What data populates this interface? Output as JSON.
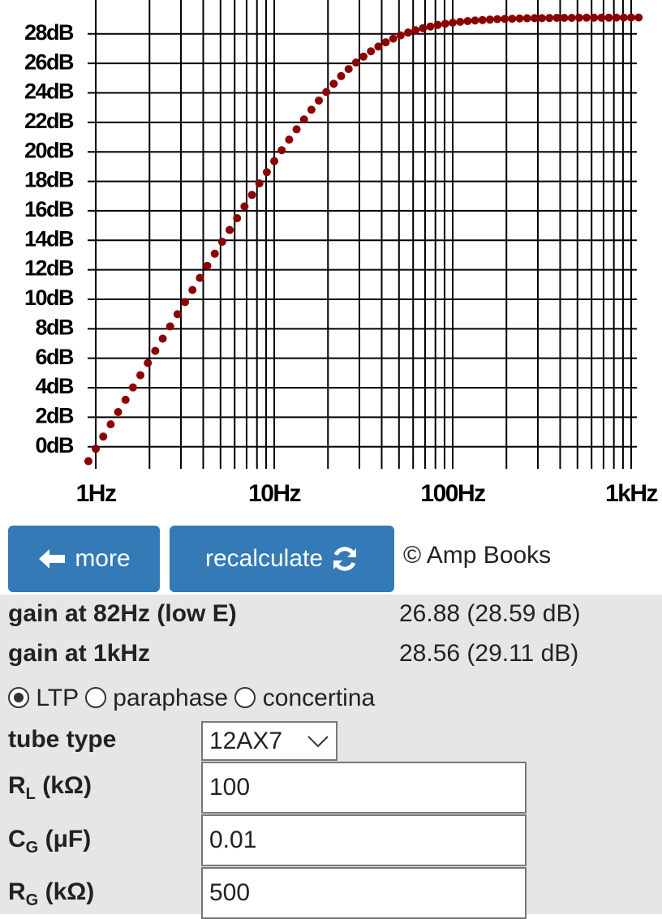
{
  "chart_data": {
    "type": "scatter",
    "x": [
      0.909,
      1,
      1.101,
      1.212,
      1.334,
      1.468,
      1.616,
      1.778,
      1.958,
      2.154,
      2.371,
      2.61,
      2.873,
      3.162,
      3.481,
      3.831,
      4.217,
      4.642,
      5.109,
      5.623,
      6.19,
      6.813,
      7.499,
      8.254,
      9.086,
      10,
      11.01,
      12.12,
      13.34,
      14.68,
      16.16,
      17.78,
      19.58,
      21.54,
      23.71,
      26.1,
      28.73,
      31.62,
      34.81,
      38.31,
      42.17,
      46.42,
      51.09,
      56.23,
      61.9,
      68.13,
      74.99,
      82.54,
      90.86,
      100,
      110.1,
      121.2,
      133.4,
      146.8,
      161.6,
      177.8,
      195.8,
      215.4,
      237.1,
      261,
      287.3,
      316.2,
      348.1,
      383.1,
      421.7,
      464.2,
      510.9,
      562.3,
      619,
      681.3,
      749.9,
      825.4,
      908.6,
      1000,
      1101
    ],
    "values": [
      -0.98,
      -0.14,
      0.69,
      1.52,
      2.35,
      3.18,
      4.02,
      4.85,
      5.68,
      6.5,
      7.33,
      8.16,
      8.99,
      9.81,
      10.63,
      11.45,
      12.27,
      13.09,
      13.9,
      14.7,
      15.5,
      16.3,
      17.08,
      17.86,
      18.62,
      19.37,
      20.11,
      20.83,
      21.53,
      22.2,
      22.86,
      23.48,
      24.06,
      24.62,
      25.14,
      25.62,
      26.06,
      26.46,
      26.82,
      27.14,
      27.43,
      27.68,
      27.9,
      28.09,
      28.25,
      28.39,
      28.5,
      28.61,
      28.69,
      28.76,
      28.82,
      28.87,
      28.91,
      28.94,
      28.97,
      29.0,
      29.02,
      29.03,
      29.05,
      29.06,
      29.07,
      29.07,
      29.08,
      29.09,
      29.09,
      29.09,
      29.1,
      29.1,
      29.1,
      29.1,
      29.1,
      29.11,
      29.11,
      29.11,
      29.11
    ],
    "color": "#8b0000",
    "xscale": "log",
    "xlim": [
      0.9,
      1076
    ],
    "ylim": [
      -1.5,
      30.3
    ],
    "xticks": [
      {
        "value": 1,
        "label": "1Hz"
      },
      {
        "value": 10,
        "label": "10Hz"
      },
      {
        "value": 100,
        "label": "100Hz"
      },
      {
        "value": 1000,
        "label": "1kHz"
      }
    ],
    "x_minor_ticks": [
      2,
      3,
      4,
      5,
      6,
      7,
      8,
      9,
      20,
      30,
      40,
      50,
      60,
      70,
      80,
      90,
      200,
      300,
      400,
      500,
      600,
      700,
      800,
      900
    ],
    "yticks": [
      {
        "value": 0,
        "label": "0dB"
      },
      {
        "value": 2,
        "label": "2dB"
      },
      {
        "value": 4,
        "label": "4dB"
      },
      {
        "value": 6,
        "label": "6dB"
      },
      {
        "value": 8,
        "label": "8dB"
      },
      {
        "value": 10,
        "label": "10dB"
      },
      {
        "value": 12,
        "label": "12dB"
      },
      {
        "value": 14,
        "label": "14dB"
      },
      {
        "value": 16,
        "label": "16dB"
      },
      {
        "value": 18,
        "label": "18dB"
      },
      {
        "value": 20,
        "label": "20dB"
      },
      {
        "value": 22,
        "label": "22dB"
      },
      {
        "value": 24,
        "label": "24dB"
      },
      {
        "value": 26,
        "label": "26dB"
      },
      {
        "value": 28,
        "label": "28dB"
      }
    ],
    "grid": true
  },
  "buttons": {
    "more": "more",
    "recalculate": "recalculate"
  },
  "copyright": "© Amp Books",
  "results": [
    {
      "label": "gain at 82Hz (low E)",
      "value": "26.88 (28.59 dB)"
    },
    {
      "label": "gain at 1kHz",
      "value": "28.56 (29.11 dB)"
    }
  ],
  "circuit_options": [
    {
      "label": "LTP",
      "selected": true
    },
    {
      "label": "paraphase",
      "selected": false
    },
    {
      "label": "concertina",
      "selected": false
    }
  ],
  "tube_type": {
    "label": "tube type",
    "value": "12AX7"
  },
  "fields": [
    {
      "label": "R",
      "sub": "L",
      "unit": "(kΩ)",
      "value": "100"
    },
    {
      "label": "C",
      "sub": "G",
      "unit": "(μF)",
      "value": "0.01"
    },
    {
      "label": "R",
      "sub": "G",
      "unit": "(kΩ)",
      "value": "500"
    }
  ]
}
